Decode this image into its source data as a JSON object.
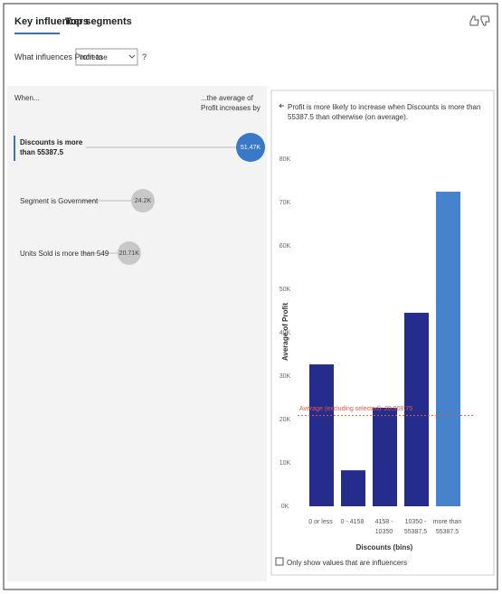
{
  "tabs": [
    "Key influencers",
    "Top segments"
  ],
  "question": {
    "label": "What influences Profit to",
    "selection": "Increase",
    "help": "?"
  },
  "influencers": {
    "when_header": "When...",
    "effect_header": "...the average of Profit increases by",
    "rows": [
      {
        "label": "Discounts is more than 55387.5",
        "value": 51470,
        "value_label": "51.47K"
      },
      {
        "label": "Segment is Government",
        "value": 24200,
        "value_label": "24.2K"
      },
      {
        "label": "Units Sold is more than 549",
        "value": 20710,
        "value_label": "20.71K"
      }
    ]
  },
  "chart_data": {
    "type": "bar",
    "title": "Profit is more likely to increase when Discounts is more than 55387.5 than otherwise (on average).",
    "x_label": "Discounts (bins)",
    "y_label": "Average of Profit",
    "categories": [
      "0 or less",
      "0 - 4158",
      "4158 - 10350",
      "10350 - 55387.5",
      "more than 55387.5"
    ],
    "values": [
      32700,
      8300,
      22700,
      44600,
      72500
    ],
    "colors": [
      "#262c8c",
      "#262c8c",
      "#262c8c",
      "#262c8c",
      "#4584cc"
    ],
    "ylim": [
      0,
      80000
    ],
    "yticks": [
      {
        "value": 0,
        "label": "0K"
      },
      {
        "value": 10000,
        "label": "10K"
      },
      {
        "value": 20000,
        "label": "20K"
      },
      {
        "value": 30000,
        "label": "30K"
      },
      {
        "value": 40000,
        "label": "40K"
      },
      {
        "value": 50000,
        "label": "50K"
      },
      {
        "value": 60000,
        "label": "60K"
      },
      {
        "value": 70000,
        "label": "70K"
      },
      {
        "value": 80000,
        "label": "80K"
      }
    ],
    "reference_line": {
      "value": 20908.75,
      "label": "Average (excluding selected): 20,908.75",
      "color": "#e05a4a"
    },
    "grid": false
  },
  "checkbox": "Only show values that are influencers"
}
